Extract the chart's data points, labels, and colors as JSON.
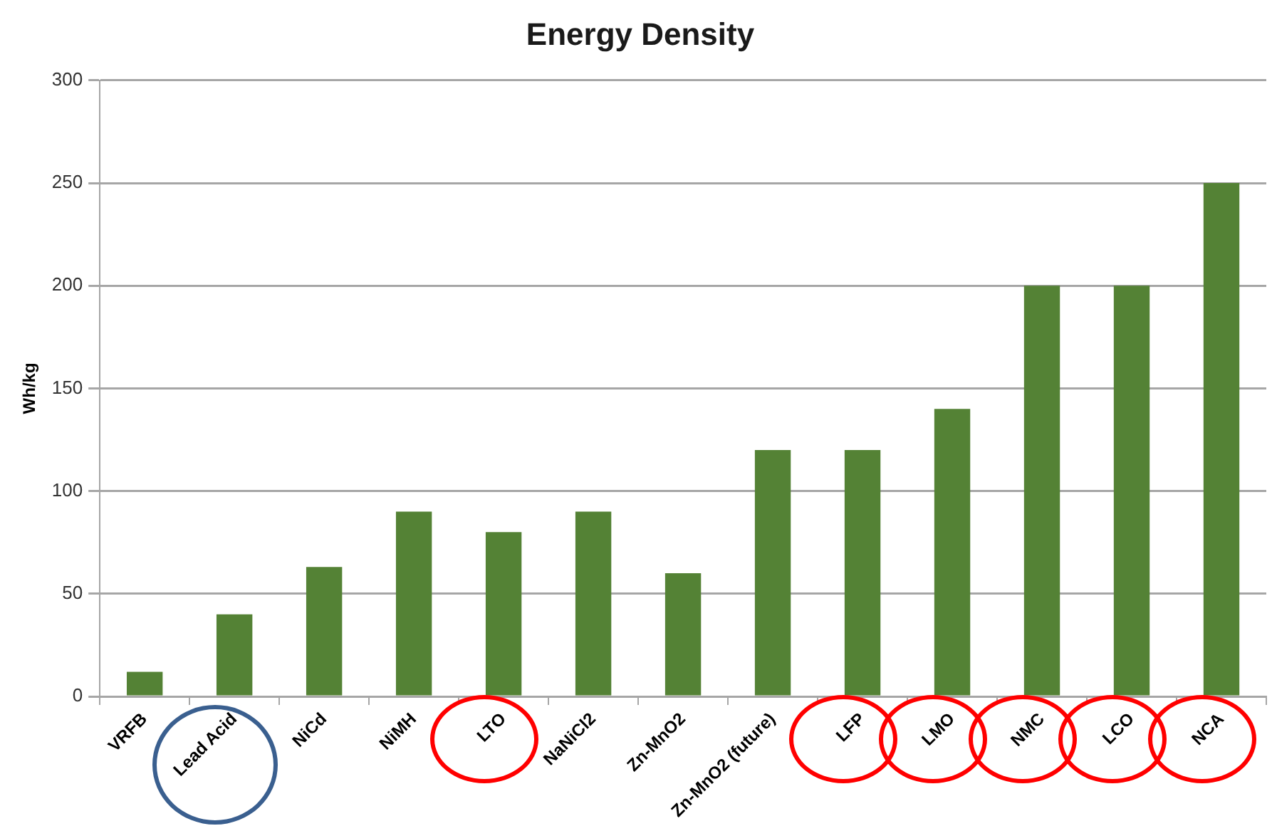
{
  "chart_data": {
    "type": "bar",
    "title": "Energy Density",
    "ylabel": "Wh/kg",
    "categories": [
      "VRFB",
      "Lead Acid",
      "NiCd",
      "NiMH",
      "LTO",
      "NaNiCl2",
      "Zn-MnO2",
      "Zn-MnO2 (future)",
      "LFP",
      "LMO",
      "NMC",
      "LCO",
      "NCA"
    ],
    "values": [
      12,
      40,
      63,
      90,
      80,
      90,
      60,
      120,
      120,
      140,
      200,
      200,
      250
    ],
    "color": "#548235",
    "ylim": [
      0,
      300
    ],
    "yticks": [
      0,
      50,
      100,
      150,
      200,
      250,
      300
    ],
    "grid": "y",
    "legend": false
  }
}
